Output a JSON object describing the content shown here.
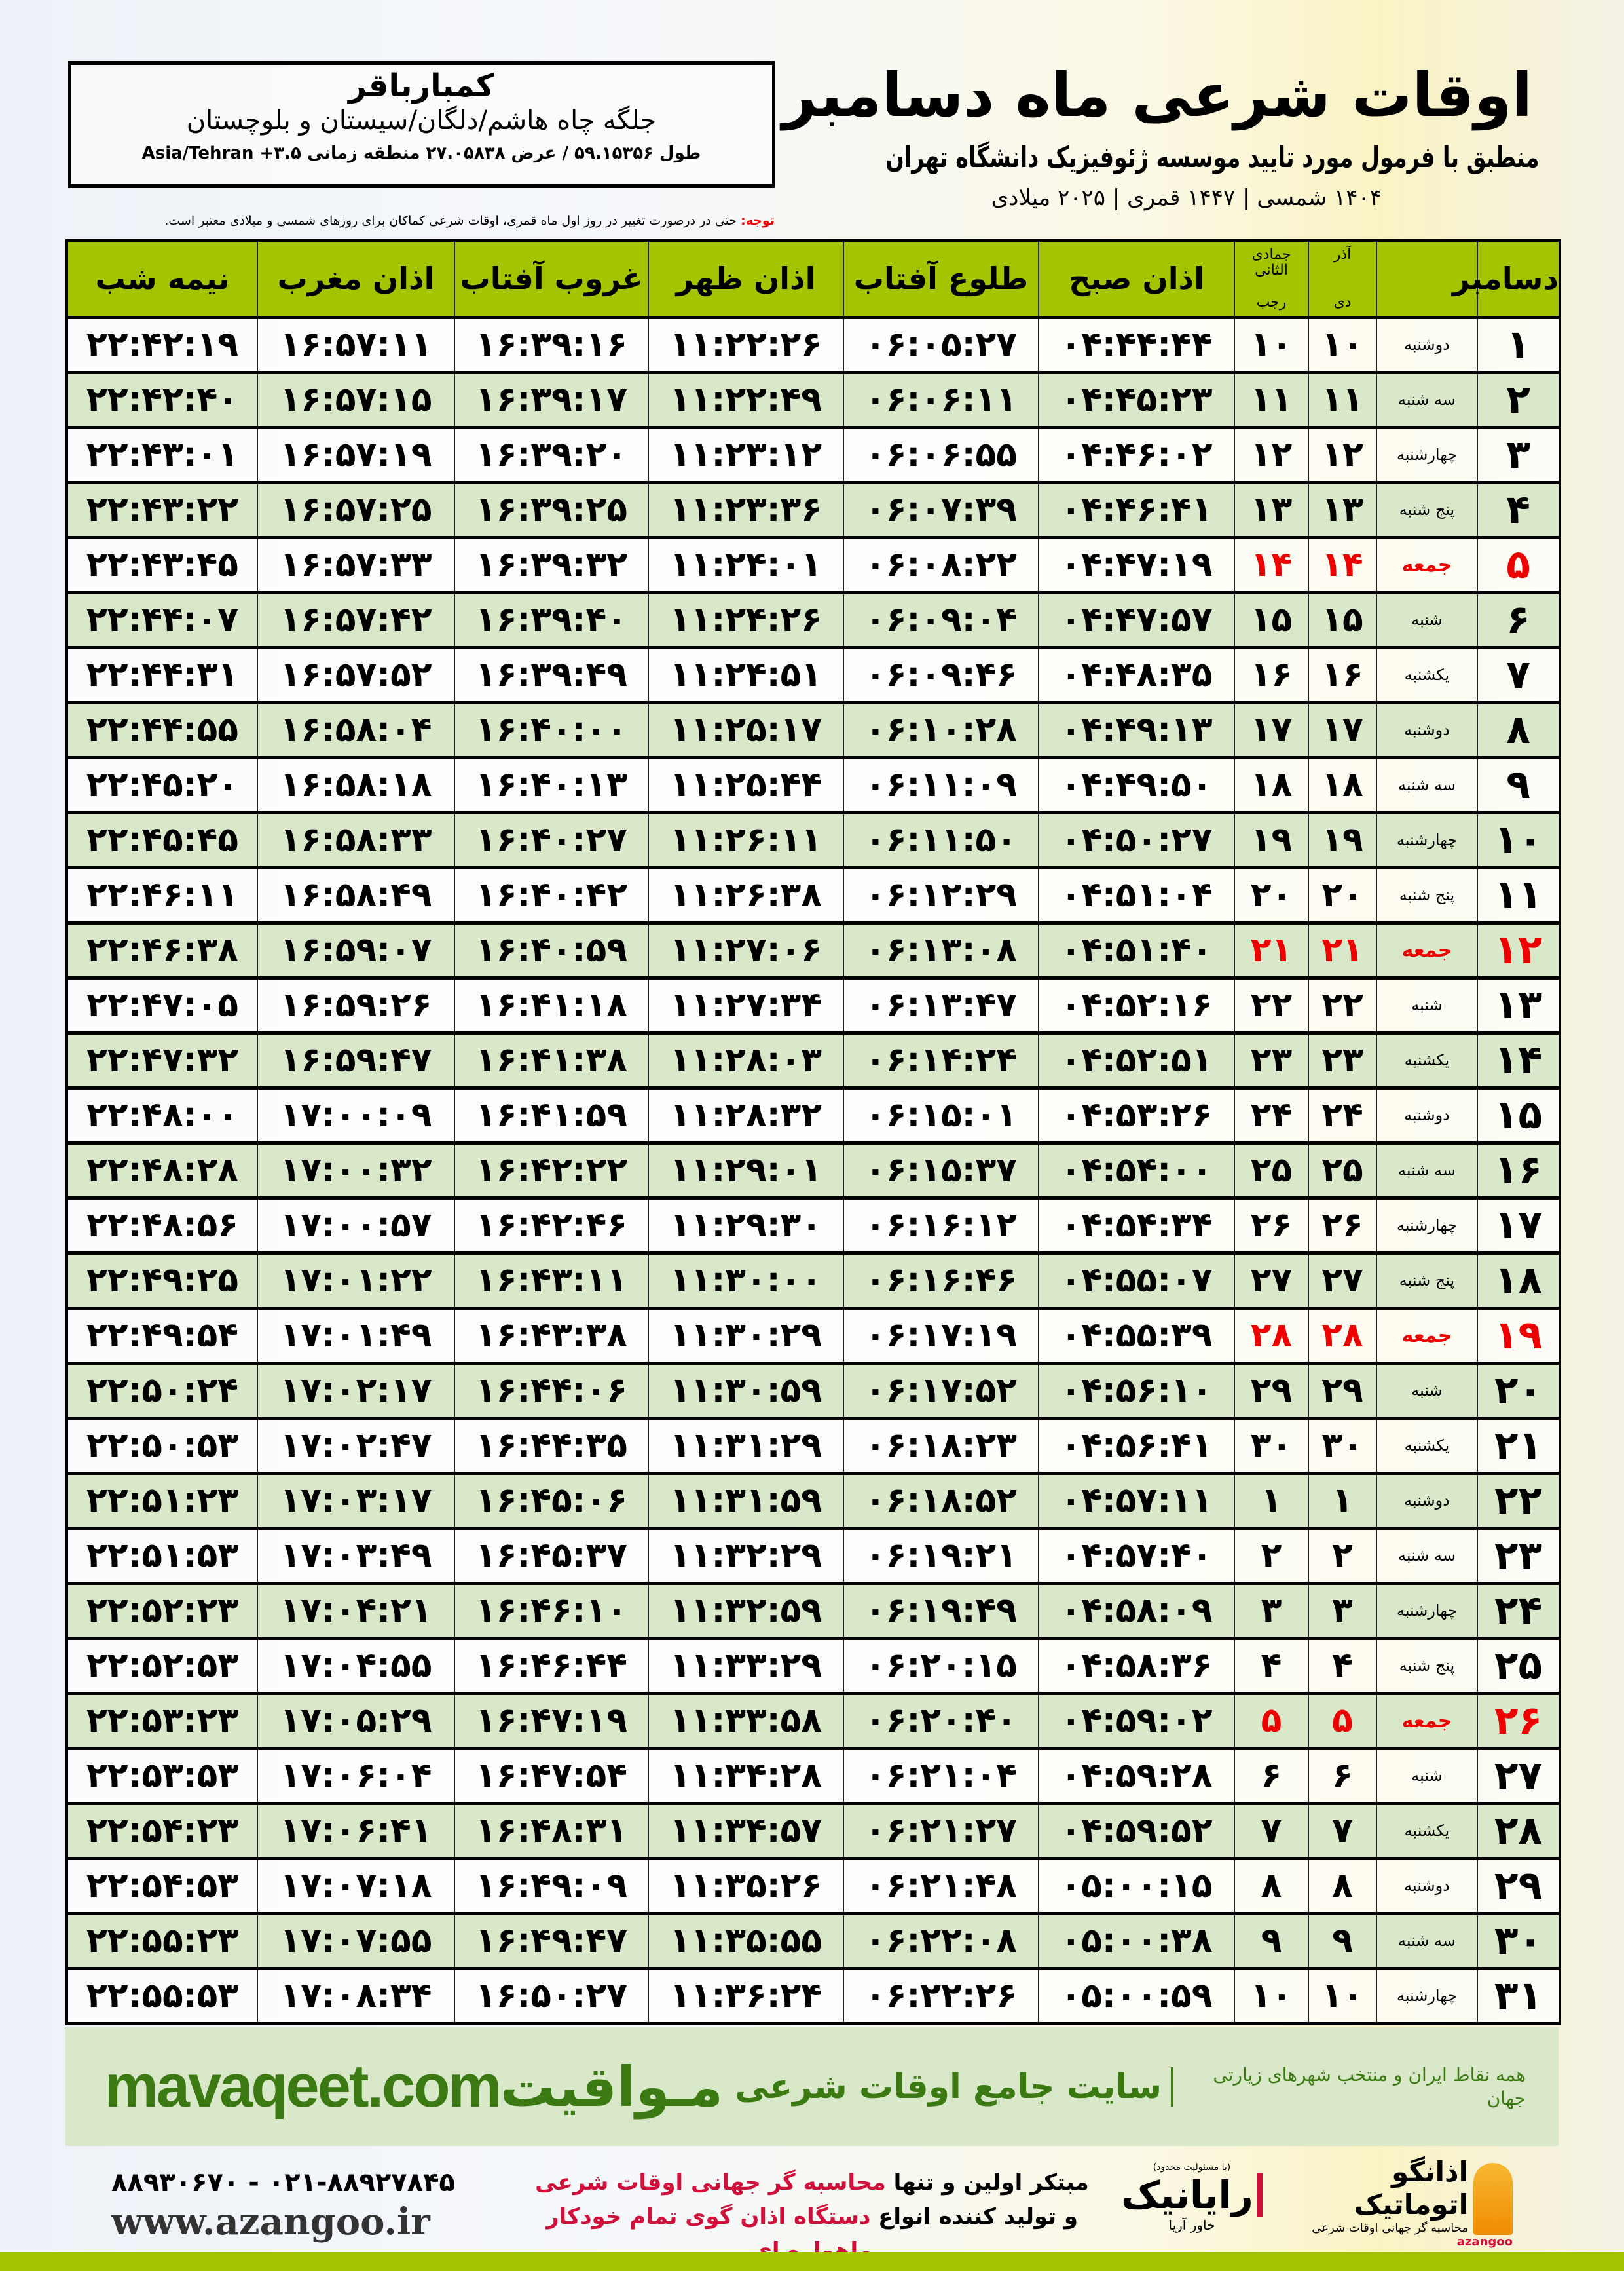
{
  "location": {
    "name": "کمبارباقر",
    "region": "جلگه چاه هاشم/دلگان/سیستان و بلوچستان",
    "coords": "طول ۵۹.۱۵۳۵۶ / عرض ۲۷.۰۵۸۳۸ منطقه زمانی ۳.۵+ Asia/Tehran"
  },
  "header": {
    "title": "اوقات شرعی ماه دسامبر",
    "subtitle": "منطبق با فرمول مورد تایید موسسه ژئوفیزیک دانشگاه تهران",
    "dates": "۱۴۰۴ شمسی | ۱۴۴۷ قمری | ۲۰۲۵ میلادی"
  },
  "note": {
    "label": "توجه:",
    "text": " حتی در درصورت تغییر در روز اول ماه قمری، اوقات شرعی کماکان برای روزهای شمسی و میلادی معتبر است."
  },
  "colors": {
    "header_green": "#a4c400",
    "row_green": "#d9e8c8",
    "friday_red": "#e00000",
    "brand_green": "#3b7a12"
  },
  "table": {
    "columns": {
      "day": "دسامبر",
      "solar_top": "آذر",
      "solar_bottom": "دی",
      "lunar_top": "جمادی الثانی",
      "lunar_bottom": "رجب",
      "fajr": "اذان صبح",
      "sunrise": "طلوع آفتاب",
      "dhuhr": "اذان ظهر",
      "sunset": "غروب آفتاب",
      "maghrib": "اذان مغرب",
      "midnight": "نیمه شب"
    },
    "rows": [
      [
        "۱",
        "دوشنبه",
        "۱۰",
        "۱۰",
        "۰۴:۴۴:۴۴",
        "۰۶:۰۵:۲۷",
        "۱۱:۲۲:۲۶",
        "۱۶:۳۹:۱۶",
        "۱۶:۵۷:۱۱",
        "۲۲:۴۲:۱۹"
      ],
      [
        "۲",
        "سه شنبه",
        "۱۱",
        "۱۱",
        "۰۴:۴۵:۲۳",
        "۰۶:۰۶:۱۱",
        "۱۱:۲۲:۴۹",
        "۱۶:۳۹:۱۷",
        "۱۶:۵۷:۱۵",
        "۲۲:۴۲:۴۰"
      ],
      [
        "۳",
        "چهارشنبه",
        "۱۲",
        "۱۲",
        "۰۴:۴۶:۰۲",
        "۰۶:۰۶:۵۵",
        "۱۱:۲۳:۱۲",
        "۱۶:۳۹:۲۰",
        "۱۶:۵۷:۱۹",
        "۲۲:۴۳:۰۱"
      ],
      [
        "۴",
        "پنج شنبه",
        "۱۳",
        "۱۳",
        "۰۴:۴۶:۴۱",
        "۰۶:۰۷:۳۹",
        "۱۱:۲۳:۳۶",
        "۱۶:۳۹:۲۵",
        "۱۶:۵۷:۲۵",
        "۲۲:۴۳:۲۲"
      ],
      [
        "۵",
        "جمعه",
        "۱۴",
        "۱۴",
        "۰۴:۴۷:۱۹",
        "۰۶:۰۸:۲۲",
        "۱۱:۲۴:۰۱",
        "۱۶:۳۹:۳۲",
        "۱۶:۵۷:۳۳",
        "۲۲:۴۳:۴۵"
      ],
      [
        "۶",
        "شنبه",
        "۱۵",
        "۱۵",
        "۰۴:۴۷:۵۷",
        "۰۶:۰۹:۰۴",
        "۱۱:۲۴:۲۶",
        "۱۶:۳۹:۴۰",
        "۱۶:۵۷:۴۲",
        "۲۲:۴۴:۰۷"
      ],
      [
        "۷",
        "یکشنبه",
        "۱۶",
        "۱۶",
        "۰۴:۴۸:۳۵",
        "۰۶:۰۹:۴۶",
        "۱۱:۲۴:۵۱",
        "۱۶:۳۹:۴۹",
        "۱۶:۵۷:۵۲",
        "۲۲:۴۴:۳۱"
      ],
      [
        "۸",
        "دوشنبه",
        "۱۷",
        "۱۷",
        "۰۴:۴۹:۱۳",
        "۰۶:۱۰:۲۸",
        "۱۱:۲۵:۱۷",
        "۱۶:۴۰:۰۰",
        "۱۶:۵۸:۰۴",
        "۲۲:۴۴:۵۵"
      ],
      [
        "۹",
        "سه شنبه",
        "۱۸",
        "۱۸",
        "۰۴:۴۹:۵۰",
        "۰۶:۱۱:۰۹",
        "۱۱:۲۵:۴۴",
        "۱۶:۴۰:۱۳",
        "۱۶:۵۸:۱۸",
        "۲۲:۴۵:۲۰"
      ],
      [
        "۱۰",
        "چهارشنبه",
        "۱۹",
        "۱۹",
        "۰۴:۵۰:۲۷",
        "۰۶:۱۱:۵۰",
        "۱۱:۲۶:۱۱",
        "۱۶:۴۰:۲۷",
        "۱۶:۵۸:۳۳",
        "۲۲:۴۵:۴۵"
      ],
      [
        "۱۱",
        "پنج شنبه",
        "۲۰",
        "۲۰",
        "۰۴:۵۱:۰۴",
        "۰۶:۱۲:۲۹",
        "۱۱:۲۶:۳۸",
        "۱۶:۴۰:۴۲",
        "۱۶:۵۸:۴۹",
        "۲۲:۴۶:۱۱"
      ],
      [
        "۱۲",
        "جمعه",
        "۲۱",
        "۲۱",
        "۰۴:۵۱:۴۰",
        "۰۶:۱۳:۰۸",
        "۱۱:۲۷:۰۶",
        "۱۶:۴۰:۵۹",
        "۱۶:۵۹:۰۷",
        "۲۲:۴۶:۳۸"
      ],
      [
        "۱۳",
        "شنبه",
        "۲۲",
        "۲۲",
        "۰۴:۵۲:۱۶",
        "۰۶:۱۳:۴۷",
        "۱۱:۲۷:۳۴",
        "۱۶:۴۱:۱۸",
        "۱۶:۵۹:۲۶",
        "۲۲:۴۷:۰۵"
      ],
      [
        "۱۴",
        "یکشنبه",
        "۲۳",
        "۲۳",
        "۰۴:۵۲:۵۱",
        "۰۶:۱۴:۲۴",
        "۱۱:۲۸:۰۳",
        "۱۶:۴۱:۳۸",
        "۱۶:۵۹:۴۷",
        "۲۲:۴۷:۳۲"
      ],
      [
        "۱۵",
        "دوشنبه",
        "۲۴",
        "۲۴",
        "۰۴:۵۳:۲۶",
        "۰۶:۱۵:۰۱",
        "۱۱:۲۸:۳۲",
        "۱۶:۴۱:۵۹",
        "۱۷:۰۰:۰۹",
        "۲۲:۴۸:۰۰"
      ],
      [
        "۱۶",
        "سه شنبه",
        "۲۵",
        "۲۵",
        "۰۴:۵۴:۰۰",
        "۰۶:۱۵:۳۷",
        "۱۱:۲۹:۰۱",
        "۱۶:۴۲:۲۲",
        "۱۷:۰۰:۳۲",
        "۲۲:۴۸:۲۸"
      ],
      [
        "۱۷",
        "چهارشنبه",
        "۲۶",
        "۲۶",
        "۰۴:۵۴:۳۴",
        "۰۶:۱۶:۱۲",
        "۱۱:۲۹:۳۰",
        "۱۶:۴۲:۴۶",
        "۱۷:۰۰:۵۷",
        "۲۲:۴۸:۵۶"
      ],
      [
        "۱۸",
        "پنج شنبه",
        "۲۷",
        "۲۷",
        "۰۴:۵۵:۰۷",
        "۰۶:۱۶:۴۶",
        "۱۱:۳۰:۰۰",
        "۱۶:۴۳:۱۱",
        "۱۷:۰۱:۲۲",
        "۲۲:۴۹:۲۵"
      ],
      [
        "۱۹",
        "جمعه",
        "۲۸",
        "۲۸",
        "۰۴:۵۵:۳۹",
        "۰۶:۱۷:۱۹",
        "۱۱:۳۰:۲۹",
        "۱۶:۴۳:۳۸",
        "۱۷:۰۱:۴۹",
        "۲۲:۴۹:۵۴"
      ],
      [
        "۲۰",
        "شنبه",
        "۲۹",
        "۲۹",
        "۰۴:۵۶:۱۰",
        "۰۶:۱۷:۵۲",
        "۱۱:۳۰:۵۹",
        "۱۶:۴۴:۰۶",
        "۱۷:۰۲:۱۷",
        "۲۲:۵۰:۲۴"
      ],
      [
        "۲۱",
        "یکشنبه",
        "۳۰",
        "۳۰",
        "۰۴:۵۶:۴۱",
        "۰۶:۱۸:۲۳",
        "۱۱:۳۱:۲۹",
        "۱۶:۴۴:۳۵",
        "۱۷:۰۲:۴۷",
        "۲۲:۵۰:۵۳"
      ],
      [
        "۲۲",
        "دوشنبه",
        "۱",
        "۱",
        "۰۴:۵۷:۱۱",
        "۰۶:۱۸:۵۲",
        "۱۱:۳۱:۵۹",
        "۱۶:۴۵:۰۶",
        "۱۷:۰۳:۱۷",
        "۲۲:۵۱:۲۳"
      ],
      [
        "۲۳",
        "سه شنبه",
        "۲",
        "۲",
        "۰۴:۵۷:۴۰",
        "۰۶:۱۹:۲۱",
        "۱۱:۳۲:۲۹",
        "۱۶:۴۵:۳۷",
        "۱۷:۰۳:۴۹",
        "۲۲:۵۱:۵۳"
      ],
      [
        "۲۴",
        "چهارشنبه",
        "۳",
        "۳",
        "۰۴:۵۸:۰۹",
        "۰۶:۱۹:۴۹",
        "۱۱:۳۲:۵۹",
        "۱۶:۴۶:۱۰",
        "۱۷:۰۴:۲۱",
        "۲۲:۵۲:۲۳"
      ],
      [
        "۲۵",
        "پنج شنبه",
        "۴",
        "۴",
        "۰۴:۵۸:۳۶",
        "۰۶:۲۰:۱۵",
        "۱۱:۳۳:۲۹",
        "۱۶:۴۶:۴۴",
        "۱۷:۰۴:۵۵",
        "۲۲:۵۲:۵۳"
      ],
      [
        "۲۶",
        "جمعه",
        "۵",
        "۵",
        "۰۴:۵۹:۰۲",
        "۰۶:۲۰:۴۰",
        "۱۱:۳۳:۵۸",
        "۱۶:۴۷:۱۹",
        "۱۷:۰۵:۲۹",
        "۲۲:۵۳:۲۳"
      ],
      [
        "۲۷",
        "شنبه",
        "۶",
        "۶",
        "۰۴:۵۹:۲۸",
        "۰۶:۲۱:۰۴",
        "۱۱:۳۴:۲۸",
        "۱۶:۴۷:۵۴",
        "۱۷:۰۶:۰۴",
        "۲۲:۵۳:۵۳"
      ],
      [
        "۲۸",
        "یکشنبه",
        "۷",
        "۷",
        "۰۴:۵۹:۵۲",
        "۰۶:۲۱:۲۷",
        "۱۱:۳۴:۵۷",
        "۱۶:۴۸:۳۱",
        "۱۷:۰۶:۴۱",
        "۲۲:۵۴:۲۳"
      ],
      [
        "۲۹",
        "دوشنبه",
        "۸",
        "۸",
        "۰۵:۰۰:۱۵",
        "۰۶:۲۱:۴۸",
        "۱۱:۳۵:۲۶",
        "۱۶:۴۹:۰۹",
        "۱۷:۰۷:۱۸",
        "۲۲:۵۴:۵۳"
      ],
      [
        "۳۰",
        "سه شنبه",
        "۹",
        "۹",
        "۰۵:۰۰:۳۸",
        "۰۶:۲۲:۰۸",
        "۱۱:۳۵:۵۵",
        "۱۶:۴۹:۴۷",
        "۱۷:۰۷:۵۵",
        "۲۲:۵۵:۲۳"
      ],
      [
        "۳۱",
        "چهارشنبه",
        "۱۰",
        "۱۰",
        "۰۵:۰۰:۵۹",
        "۰۶:۲۲:۲۶",
        "۱۱:۳۶:۲۴",
        "۱۶:۵۰:۲۷",
        "۱۷:۰۸:۳۴",
        "۲۲:۵۵:۵۳"
      ]
    ]
  },
  "footer": {
    "brand": "مـواقیت",
    "slogan": "سایت جامع اوقات شرعی",
    "slogan2": "همه نقاط ایران و منتخب شهرهای زیارتی جهان",
    "site": "mavaqeet.com",
    "ad_line1_a": "مبتکر اولین و تنها ",
    "ad_line1_b": "محاسبه گر جهانی اوقات شرعی",
    "ad_line2_a": "و تولید کننده انواع ",
    "ad_line2_b": "دستگاه اذان گوی تمام خودکار ماهواره ای",
    "phone": "۰۲۱-۸۸۹۲۷۸۴۵ - ۸۸۹۳۰۶۷۰",
    "www": "www.azangoo.ir",
    "logo1_note": "(با مسئولیت محدود)",
    "logo1_name": "رایانیک",
    "logo1_sub": "خاور آریا",
    "logo2_name": "اذانگو اتوماتیک",
    "logo2_sub": "محاسبه گر جهانی اوقات شرعی",
    "logo2_latin": "azangoo"
  }
}
